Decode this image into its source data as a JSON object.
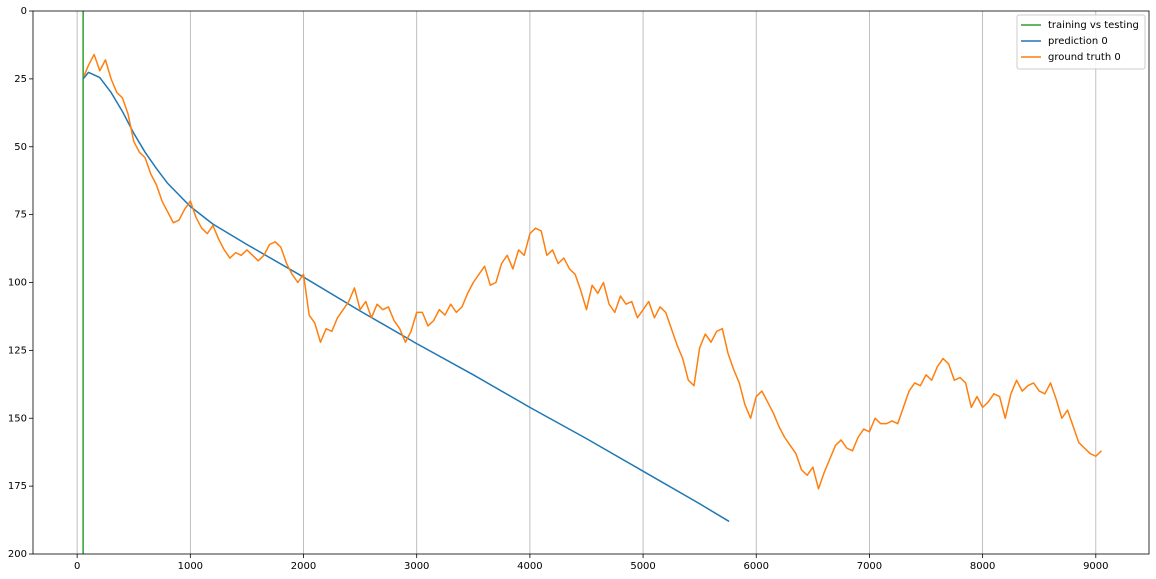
{
  "chart_data": {
    "type": "line",
    "xlim": [
      -390,
      9470
    ],
    "ylim": [
      200,
      0
    ],
    "xticks": [
      0,
      1000,
      2000,
      3000,
      4000,
      5000,
      6000,
      7000,
      8000,
      9000
    ],
    "yticks": [
      0,
      25,
      50,
      75,
      100,
      125,
      150,
      175,
      200
    ],
    "grid": "x",
    "legend": "upper right",
    "series": [
      {
        "name": "training vs testing",
        "color": "#2ca02c",
        "x": [
          53,
          53
        ],
        "values": [
          0,
          200
        ]
      },
      {
        "name": "prediction 0",
        "color": "#1f77b4",
        "x": [
          53,
          100,
          200,
          300,
          400,
          500,
          600,
          700,
          800,
          1000,
          1200,
          1500,
          2000,
          2500,
          3000,
          3500,
          4000,
          4500,
          5000,
          5500,
          5760
        ],
        "values": [
          25,
          22.6,
          24.5,
          30,
          37,
          45,
          52,
          58,
          63.5,
          72,
          78.5,
          86,
          98,
          110.5,
          122.5,
          134,
          146,
          157.5,
          169.5,
          181.5,
          188
        ]
      },
      {
        "name": "ground truth 0",
        "color": "#ff7f0e",
        "x": [
          60,
          100,
          150,
          200,
          250,
          300,
          350,
          400,
          450,
          500,
          550,
          600,
          650,
          700,
          750,
          800,
          850,
          900,
          950,
          1000,
          1050,
          1100,
          1150,
          1200,
          1250,
          1300,
          1350,
          1400,
          1450,
          1500,
          1550,
          1600,
          1650,
          1700,
          1750,
          1800,
          1850,
          1900,
          1950,
          2000,
          2050,
          2100,
          2150,
          2200,
          2250,
          2300,
          2350,
          2400,
          2450,
          2500,
          2550,
          2600,
          2650,
          2700,
          2750,
          2800,
          2850,
          2900,
          2950,
          3000,
          3050,
          3100,
          3150,
          3200,
          3250,
          3300,
          3350,
          3400,
          3450,
          3500,
          3550,
          3600,
          3650,
          3700,
          3750,
          3800,
          3850,
          3900,
          3950,
          4000,
          4050,
          4100,
          4150,
          4200,
          4250,
          4300,
          4350,
          4400,
          4450,
          4500,
          4550,
          4600,
          4650,
          4700,
          4750,
          4800,
          4850,
          4900,
          4950,
          5000,
          5050,
          5100,
          5150,
          5200,
          5250,
          5300,
          5350,
          5400,
          5450,
          5500,
          5550,
          5600,
          5650,
          5700,
          5750,
          5800,
          5850,
          5900,
          5950,
          6000,
          6050,
          6100,
          6150,
          6200,
          6250,
          6300,
          6350,
          6400,
          6450,
          6500,
          6550,
          6600,
          6650,
          6700,
          6750,
          6800,
          6850,
          6900,
          6950,
          7000,
          7050,
          7100,
          7150,
          7200,
          7250,
          7300,
          7350,
          7400,
          7450,
          7500,
          7550,
          7600,
          7650,
          7700,
          7750,
          7800,
          7850,
          7900,
          7950,
          8000,
          8050,
          8100,
          8150,
          8200,
          8250,
          8300,
          8350,
          8400,
          8450,
          8500,
          8550,
          8600,
          8650,
          8700,
          8750,
          8800,
          8850,
          8900,
          8950,
          9000,
          9050
        ],
        "values": [
          24,
          20,
          16,
          22,
          18,
          25,
          30,
          32,
          38,
          48,
          52,
          54,
          60,
          64,
          70,
          74,
          78,
          77,
          73,
          70,
          76,
          80,
          82,
          79,
          84,
          88,
          91,
          89,
          90,
          88,
          90,
          92,
          90,
          86,
          85,
          87,
          93,
          97,
          100,
          97,
          112,
          115,
          122,
          117,
          118,
          113,
          110,
          107,
          102,
          110,
          107,
          113,
          108,
          110,
          109,
          114,
          117,
          122,
          118,
          111,
          111,
          116,
          114,
          110,
          112,
          108,
          111,
          109,
          104,
          100,
          97,
          94,
          101,
          100,
          93,
          90,
          95,
          88,
          90,
          82,
          80,
          81,
          90,
          88,
          93,
          91,
          95,
          97,
          103,
          110,
          101,
          104,
          100,
          108,
          111,
          105,
          108,
          107,
          113,
          110,
          107,
          113,
          109,
          111,
          117,
          123,
          128,
          136,
          138,
          124,
          119,
          122,
          118,
          117,
          126,
          132,
          137,
          145,
          150,
          142,
          140,
          144,
          148,
          153,
          157,
          160,
          163,
          169,
          171,
          168,
          176,
          170,
          165,
          160,
          158,
          161,
          162,
          157,
          154,
          155,
          150,
          152,
          152,
          151,
          152,
          146,
          140,
          137,
          138,
          134,
          136,
          131,
          128,
          130,
          136,
          135,
          137,
          146,
          142,
          146,
          144,
          141,
          142,
          150,
          141,
          136,
          140,
          138,
          137,
          140,
          141,
          137,
          143,
          150,
          147,
          153,
          159,
          161,
          163,
          164,
          162
        ]
      }
    ]
  }
}
